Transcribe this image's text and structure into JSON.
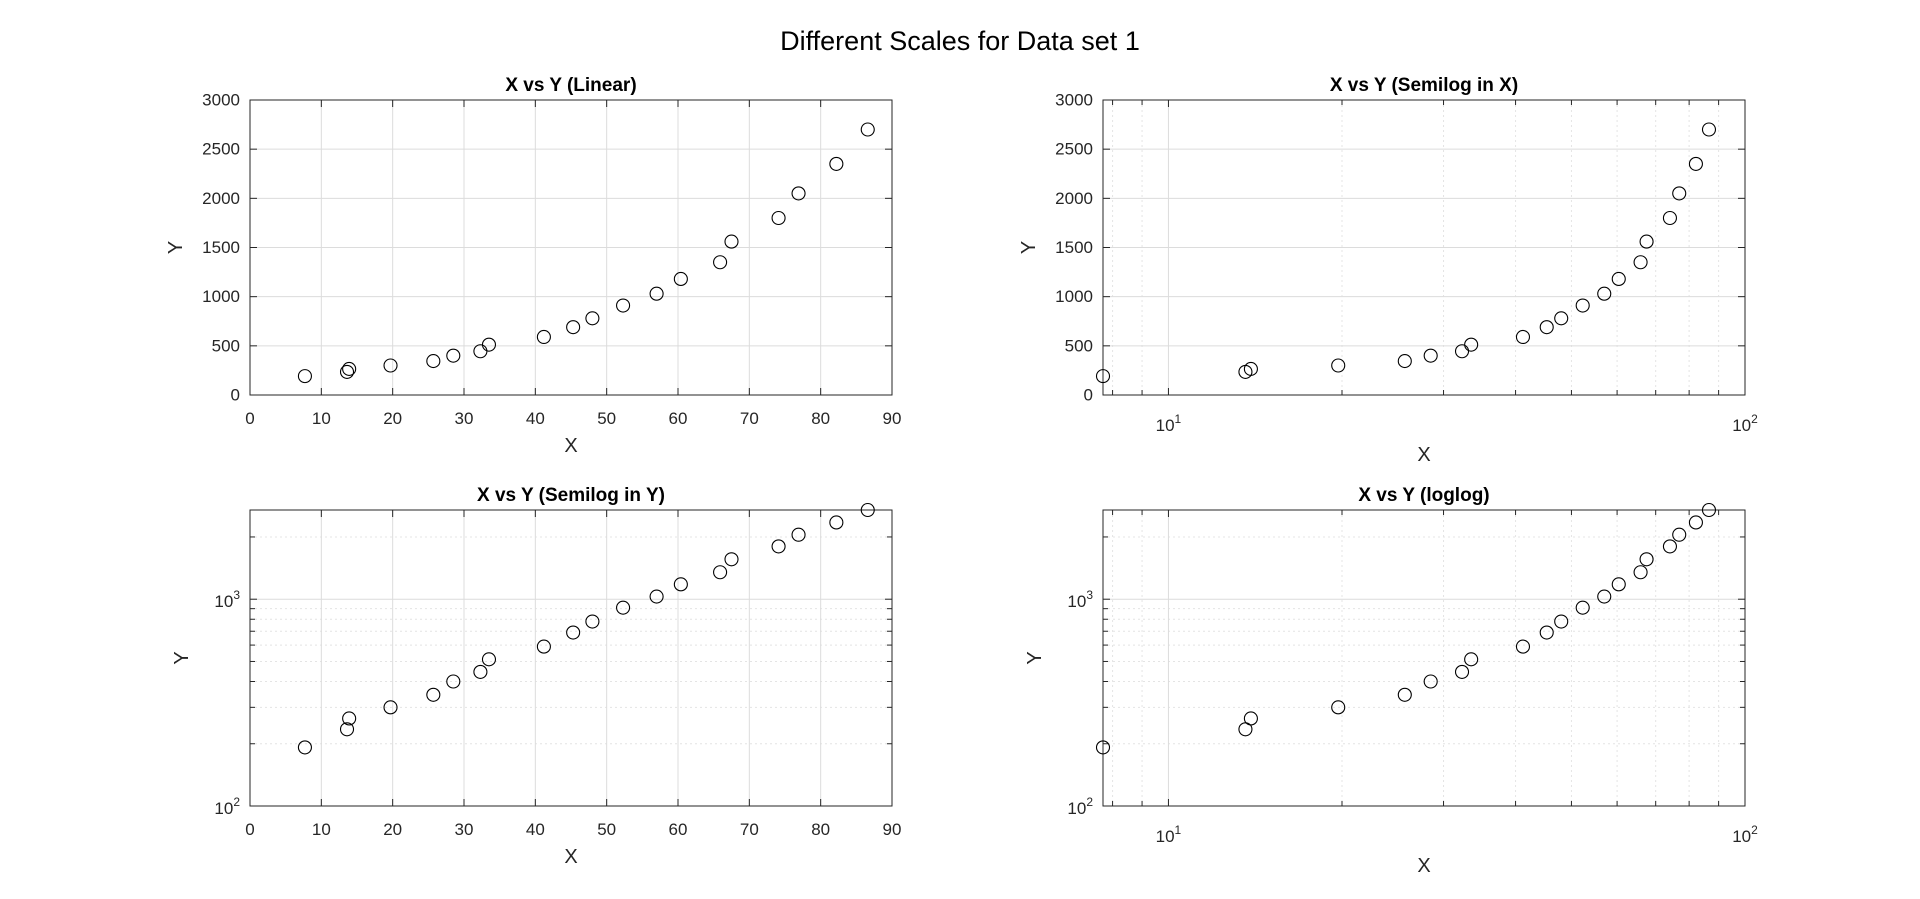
{
  "figure_title": "Different Scales for Data set 1",
  "chart_data": [
    {
      "type": "scatter",
      "title": "X vs Y (Linear)",
      "xlabel": "X",
      "ylabel": "Y",
      "xscale": "linear",
      "yscale": "linear",
      "xlim": [
        0,
        90
      ],
      "ylim": [
        0,
        3000
      ],
      "xticks": [
        0,
        10,
        20,
        30,
        40,
        50,
        60,
        70,
        80,
        90
      ],
      "yticks": [
        0,
        500,
        1000,
        1500,
        2000,
        2500,
        3000
      ],
      "grid": true,
      "marker": "circle",
      "x": [
        7.7,
        13.6,
        13.9,
        19.7,
        25.7,
        28.5,
        32.3,
        33.5,
        41.2,
        45.3,
        48.0,
        52.3,
        57.0,
        60.4,
        65.9,
        67.5,
        74.1,
        76.9,
        82.2,
        86.6
      ],
      "y": [
        192,
        235,
        265,
        300,
        345,
        400,
        445,
        512,
        590,
        690,
        780,
        910,
        1030,
        1180,
        1350,
        1560,
        1800,
        2050,
        2350,
        2700
      ]
    },
    {
      "type": "scatter",
      "title": "X vs Y (Semilog in X)",
      "xlabel": "X",
      "ylabel": "Y",
      "xscale": "log",
      "yscale": "linear",
      "xlim": [
        7.7,
        100
      ],
      "ylim": [
        0,
        3000
      ],
      "xticks": [
        10,
        100
      ],
      "yticks": [
        0,
        500,
        1000,
        1500,
        2000,
        2500,
        3000
      ],
      "grid": true,
      "marker": "circle",
      "x": [
        7.7,
        13.6,
        13.9,
        19.7,
        25.7,
        28.5,
        32.3,
        33.5,
        41.2,
        45.3,
        48.0,
        52.3,
        57.0,
        60.4,
        65.9,
        67.5,
        74.1,
        76.9,
        82.2,
        86.6
      ],
      "y": [
        192,
        235,
        265,
        300,
        345,
        400,
        445,
        512,
        590,
        690,
        780,
        910,
        1030,
        1180,
        1350,
        1560,
        1800,
        2050,
        2350,
        2700
      ]
    },
    {
      "type": "scatter",
      "title": "X vs Y (Semilog in Y)",
      "xlabel": "X",
      "ylabel": "Y",
      "xscale": "linear",
      "yscale": "log",
      "xlim": [
        0,
        90
      ],
      "ylim": [
        100,
        2700
      ],
      "xticks": [
        0,
        10,
        20,
        30,
        40,
        50,
        60,
        70,
        80,
        90
      ],
      "yticks": [
        100,
        1000
      ],
      "grid": true,
      "marker": "circle",
      "x": [
        7.7,
        13.6,
        13.9,
        19.7,
        25.7,
        28.5,
        32.3,
        33.5,
        41.2,
        45.3,
        48.0,
        52.3,
        57.0,
        60.4,
        65.9,
        67.5,
        74.1,
        76.9,
        82.2,
        86.6
      ],
      "y": [
        192,
        235,
        265,
        300,
        345,
        400,
        445,
        512,
        590,
        690,
        780,
        910,
        1030,
        1180,
        1350,
        1560,
        1800,
        2050,
        2350,
        2700
      ]
    },
    {
      "type": "scatter",
      "title": "X vs Y (loglog)",
      "xlabel": "X",
      "ylabel": "Y",
      "xscale": "log",
      "yscale": "log",
      "xlim": [
        7.7,
        100
      ],
      "ylim": [
        100,
        2700
      ],
      "xticks": [
        10,
        100
      ],
      "yticks": [
        100,
        1000
      ],
      "grid": true,
      "marker": "circle",
      "x": [
        7.7,
        13.6,
        13.9,
        19.7,
        25.7,
        28.5,
        32.3,
        33.5,
        41.2,
        45.3,
        48.0,
        52.3,
        57.0,
        60.4,
        65.9,
        67.5,
        74.1,
        76.9,
        82.2,
        86.6
      ],
      "y": [
        192,
        235,
        265,
        300,
        345,
        400,
        445,
        512,
        590,
        690,
        780,
        910,
        1030,
        1180,
        1350,
        1560,
        1800,
        2050,
        2350,
        2700
      ]
    }
  ]
}
